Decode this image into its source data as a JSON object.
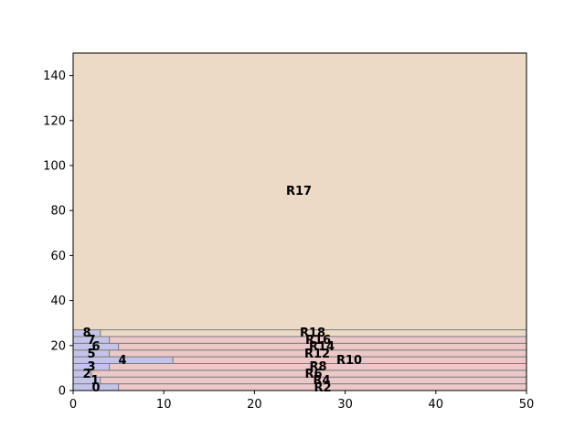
{
  "chart_data": {
    "type": "area",
    "title": "",
    "xlabel": "",
    "ylabel": "",
    "xlim": [
      0,
      50
    ],
    "ylim": [
      0,
      150
    ],
    "xticks": [
      "0",
      "10",
      "20",
      "30",
      "40",
      "50"
    ],
    "yticks": [
      "0",
      "20",
      "40",
      "60",
      "80",
      "100",
      "120",
      "140"
    ],
    "grid": false,
    "colors": {
      "blue_fill": "#c4c4ea",
      "pink_fill": "#ecc8c8",
      "tan_fill": "#ecdac6",
      "edge": "#7f7f7f",
      "text": "#000000"
    },
    "regions": [
      {
        "label": "0",
        "x0": 0,
        "x1": 5,
        "y0": 0,
        "y1": 3,
        "fill": "blue_fill"
      },
      {
        "label": "R2",
        "x0": 5,
        "x1": 50,
        "y0": 0,
        "y1": 3,
        "fill": "pink_fill"
      },
      {
        "label": "1",
        "x0": 0,
        "x1": 3,
        "y0": 3,
        "y1": 6,
        "fill": "blue_fill"
      },
      {
        "label": "R4",
        "x0": 3,
        "x1": 50,
        "y0": 3,
        "y1": 6,
        "fill": "pink_fill"
      },
      {
        "label": "2",
        "x0": 0,
        "x1": 2,
        "y0": 6,
        "y1": 9,
        "fill": "blue_fill"
      },
      {
        "label": "R6",
        "x0": 2,
        "x1": 50,
        "y0": 6,
        "y1": 9,
        "fill": "pink_fill"
      },
      {
        "label": "3",
        "x0": 0,
        "x1": 4,
        "y0": 9,
        "y1": 12,
        "fill": "blue_fill"
      },
      {
        "label": "R8",
        "x0": 4,
        "x1": 50,
        "y0": 9,
        "y1": 12,
        "fill": "pink_fill"
      },
      {
        "label": "4",
        "x0": 0,
        "x1": 11,
        "y0": 12,
        "y1": 15,
        "fill": "blue_fill"
      },
      {
        "label": "R10",
        "x0": 11,
        "x1": 50,
        "y0": 12,
        "y1": 15,
        "fill": "pink_fill"
      },
      {
        "label": "5",
        "x0": 0,
        "x1": 4,
        "y0": 15,
        "y1": 18,
        "fill": "blue_fill"
      },
      {
        "label": "R12",
        "x0": 4,
        "x1": 50,
        "y0": 15,
        "y1": 18,
        "fill": "pink_fill"
      },
      {
        "label": "6",
        "x0": 0,
        "x1": 5,
        "y0": 18,
        "y1": 21,
        "fill": "blue_fill"
      },
      {
        "label": "R14",
        "x0": 5,
        "x1": 50,
        "y0": 18,
        "y1": 21,
        "fill": "pink_fill"
      },
      {
        "label": "7",
        "x0": 0,
        "x1": 4,
        "y0": 21,
        "y1": 24,
        "fill": "blue_fill"
      },
      {
        "label": "R16",
        "x0": 4,
        "x1": 50,
        "y0": 21,
        "y1": 24,
        "fill": "pink_fill"
      },
      {
        "label": "8",
        "x0": 0,
        "x1": 3,
        "y0": 24,
        "y1": 27,
        "fill": "blue_fill"
      },
      {
        "label": "R18",
        "x0": 3,
        "x1": 50,
        "y0": 24,
        "y1": 27,
        "fill": "tan_fill"
      },
      {
        "label": "R17",
        "x0": 0,
        "x1": 50,
        "y0": 27,
        "y1": 150,
        "fill": "tan_fill"
      }
    ]
  }
}
